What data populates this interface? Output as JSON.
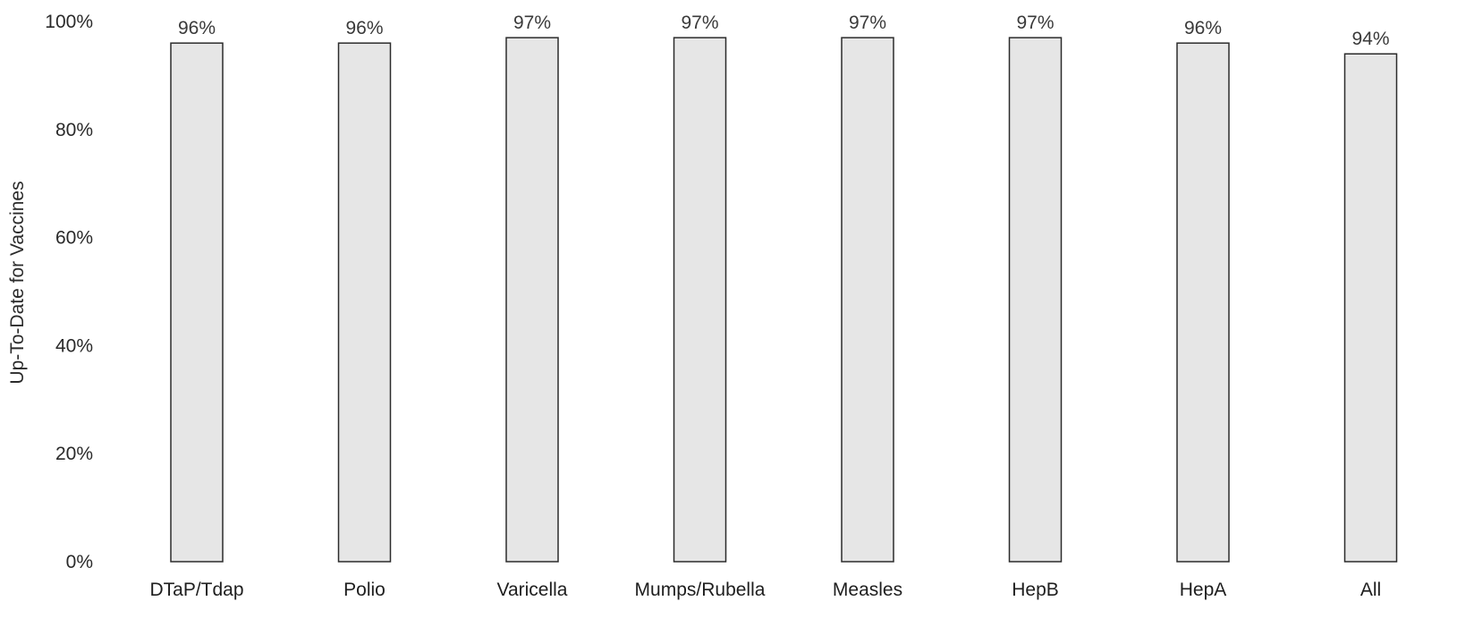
{
  "chart_data": {
    "type": "bar",
    "title": "",
    "xlabel": "",
    "ylabel": "Up-To-Date for Vaccines",
    "categories": [
      "DTaP/Tdap",
      "Polio",
      "Varicella",
      "Mumps/Rubella",
      "Measles",
      "HepB",
      "HepA",
      "All"
    ],
    "values": [
      96,
      96,
      97,
      97,
      97,
      97,
      96,
      94
    ],
    "data_labels": [
      "96%",
      "96%",
      "97%",
      "97%",
      "97%",
      "97%",
      "96%",
      "94%"
    ],
    "ylim": [
      0,
      100
    ],
    "yticks": [
      0,
      20,
      40,
      60,
      80,
      100
    ],
    "ytick_labels": [
      "0%",
      "20%",
      "40%",
      "60%",
      "80%",
      "100%"
    ],
    "grid": false,
    "legend": "none",
    "colors": {
      "bar_fill": "#e6e6e6",
      "bar_stroke": "#2b2b2b"
    }
  }
}
